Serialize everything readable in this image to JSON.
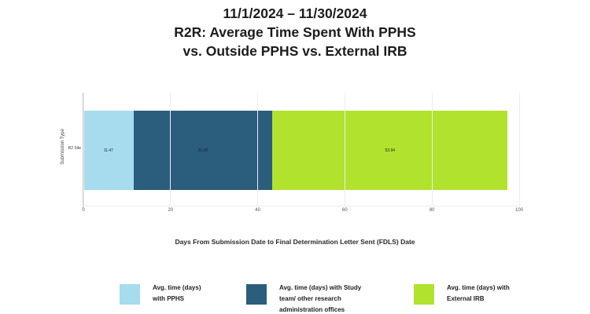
{
  "header": {
    "date_range": "11/1/2024 – 11/30/2024",
    "title": "R2R: Average Time Spent With PPHS\nvs. Outside PPHS vs. External IRB"
  },
  "chart_data": {
    "type": "bar",
    "orientation": "horizontal",
    "stacked": true,
    "categories": [
      "R2 Site"
    ],
    "series": [
      {
        "name": "Avg. time (days) with PPHS",
        "color": "#a6dcee",
        "values": [
          11.47
        ]
      },
      {
        "name": "Avg. time (days) with Study team/ other research administration offices",
        "color": "#2b5d7d",
        "values": [
          31.92
        ]
      },
      {
        "name": "Avg. time (days) with External IRB",
        "color": "#b1e22e",
        "values": [
          53.94
        ]
      }
    ],
    "title": "R2R: Average Time Spent With PPHS vs. Outside PPHS vs. External IRB",
    "subtitle": "11/1/2024 – 11/30/2024",
    "xlabel": "Days From Submission Date to Final Determination Letter Sent (FDLS) Date",
    "ylabel": "Submission Type",
    "xlim": [
      0,
      100
    ],
    "xticks": [
      0,
      20,
      40,
      60,
      80,
      100
    ],
    "grid": true,
    "legend_position": "bottom"
  },
  "legend": {
    "items": [
      {
        "label": "Avg. time (days)\nwith PPHS",
        "color": "#a6dcee"
      },
      {
        "label": "Avg. time (days) with Study\nteam/ other research\nadministration offices",
        "color": "#2b5d7d"
      },
      {
        "label": "Avg. time (days) with\nExternal IRB",
        "color": "#b1e22e"
      }
    ]
  }
}
